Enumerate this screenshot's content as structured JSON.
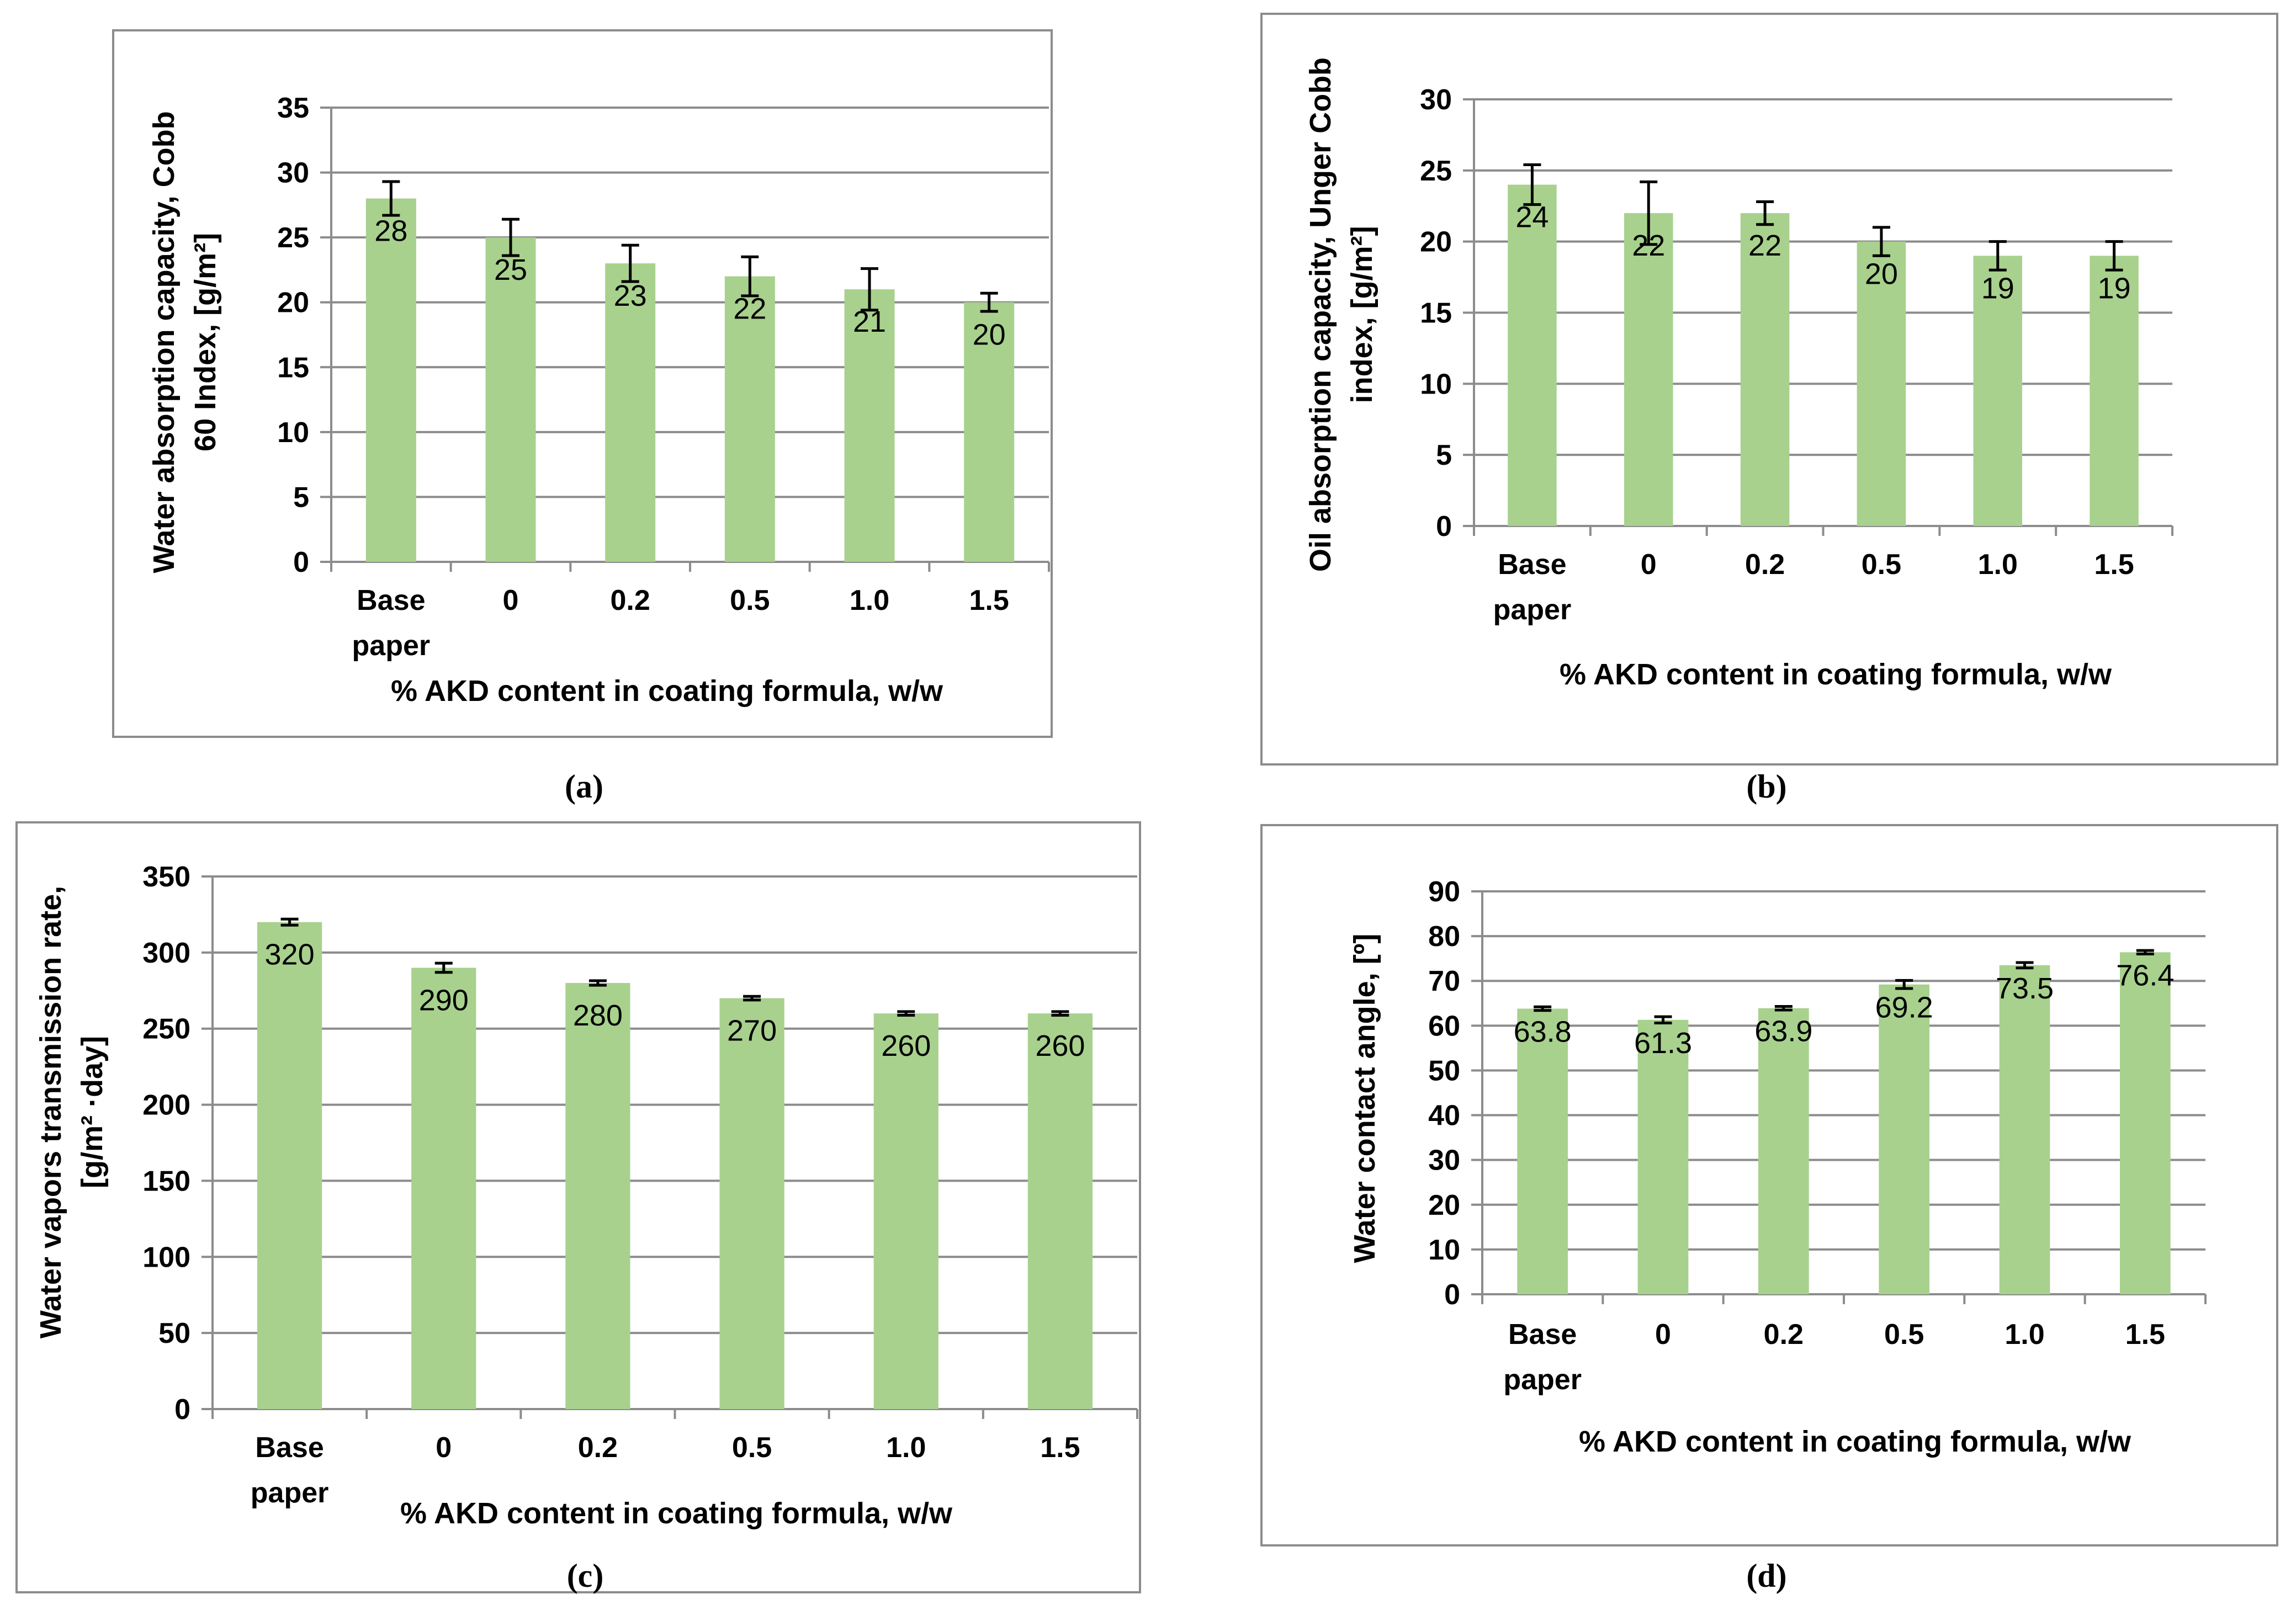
{
  "chart_data": [
    {
      "id": "a",
      "type": "bar",
      "caption": "(a)",
      "categories": [
        [
          "Base",
          "paper"
        ],
        [
          "0"
        ],
        [
          "0.2"
        ],
        [
          "0.5"
        ],
        [
          "1.0"
        ],
        [
          "1.5"
        ]
      ],
      "values": [
        28,
        25,
        23,
        22,
        21,
        20
      ],
      "value_labels": [
        "28",
        "25",
        "23",
        "22",
        "21",
        "20"
      ],
      "errors": [
        1.3,
        1.4,
        1.4,
        1.5,
        1.6,
        0.7
      ],
      "ylim": [
        0,
        35
      ],
      "ytick_step": 5,
      "ylabel_lines": [
        "Water absorption capacity, Cobb",
        "60 Index, [g/m²]"
      ],
      "xlabel": "% AKD content in coating formula, w/w",
      "color": "#a8d18d"
    },
    {
      "id": "b",
      "type": "bar",
      "caption": "(b)",
      "categories": [
        [
          "Base",
          "paper"
        ],
        [
          "0"
        ],
        [
          "0.2"
        ],
        [
          "0.5"
        ],
        [
          "1.0"
        ],
        [
          "1.5"
        ]
      ],
      "values": [
        24,
        22,
        22,
        20,
        19,
        19
      ],
      "value_labels": [
        "24",
        "22",
        "22",
        "20",
        "19",
        "19"
      ],
      "errors": [
        1.4,
        2.2,
        0.8,
        1.0,
        1.0,
        1.0
      ],
      "ylim": [
        0,
        30
      ],
      "ytick_step": 5,
      "ylabel_lines": [
        "Oil absorption capacity, Unger Cobb",
        "index, [g/m²]"
      ],
      "xlabel": "% AKD content in coating formula, w/w",
      "color": "#a8d18d"
    },
    {
      "id": "c",
      "type": "bar",
      "caption": "(c)",
      "categories": [
        [
          "Base",
          "paper"
        ],
        [
          "0"
        ],
        [
          "0.2"
        ],
        [
          "0.5"
        ],
        [
          "1.0"
        ],
        [
          "1.5"
        ]
      ],
      "values": [
        320,
        290,
        280,
        270,
        260,
        260
      ],
      "value_labels": [
        "320",
        "290",
        "280",
        "270",
        "260",
        "260"
      ],
      "errors": [
        2,
        3,
        1.5,
        1.2,
        1.2,
        1.2
      ],
      "ylim": [
        0,
        350
      ],
      "ytick_step": 50,
      "ylabel_lines": [
        "Water vapors transmission rate,",
        "[g/m² ·day]"
      ],
      "xlabel": "% AKD content in coating formula, w/w",
      "color": "#a8d18d"
    },
    {
      "id": "d",
      "type": "bar",
      "caption": "(d)",
      "categories": [
        [
          "Base",
          "paper"
        ],
        [
          "0"
        ],
        [
          "0.2"
        ],
        [
          "0.5"
        ],
        [
          "1.0"
        ],
        [
          "1.5"
        ]
      ],
      "values": [
        63.8,
        61.3,
        63.9,
        69.2,
        73.5,
        76.4
      ],
      "value_labels": [
        "63.8",
        "61.3",
        "63.9",
        "69.2",
        "73.5",
        "76.4"
      ],
      "errors": [
        0.4,
        0.7,
        0.4,
        0.9,
        0.6,
        0.4
      ],
      "ylim": [
        0,
        90
      ],
      "ytick_step": 10,
      "ylabel_lines": [
        "Water contact angle, [º]"
      ],
      "xlabel": "% AKD content in coating formula, w/w",
      "color": "#a8d18d"
    }
  ]
}
